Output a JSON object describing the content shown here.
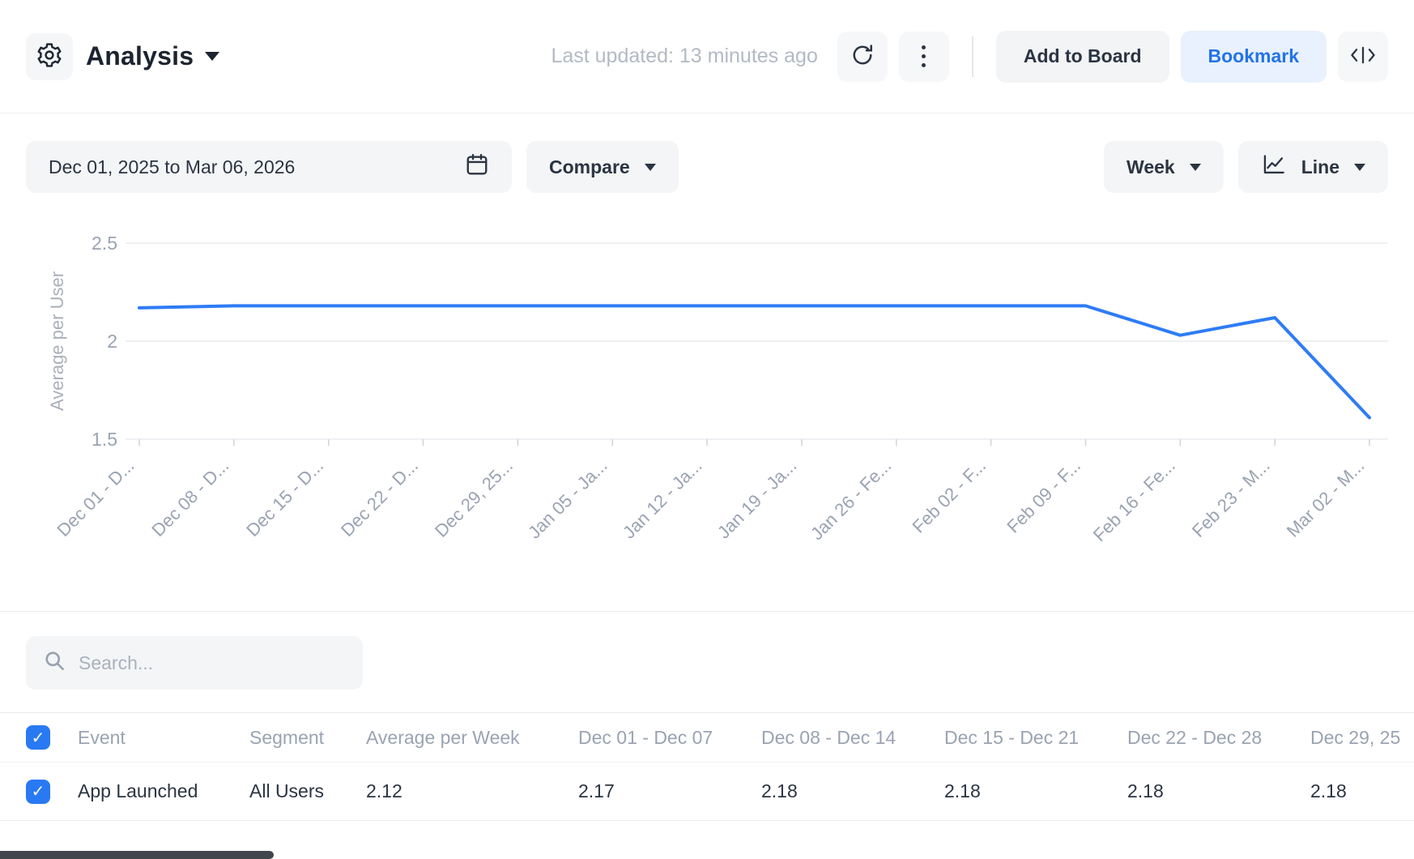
{
  "header": {
    "title": "Analysis",
    "last_updated": "Last updated: 13 minutes ago",
    "add_to_board_label": "Add to Board",
    "bookmark_label": "Bookmark"
  },
  "toolbar": {
    "date_range": "Dec 01, 2025 to Mar 06, 2026",
    "compare_label": "Compare",
    "interval_label": "Week",
    "chart_type_label": "Line"
  },
  "search": {
    "placeholder": "Search..."
  },
  "table": {
    "headers": [
      "Event",
      "Segment",
      "Average per Week",
      "Dec 01 - Dec 07",
      "Dec 08 - Dec 14",
      "Dec 15 - Dec 21",
      "Dec 22 - Dec 28",
      "Dec 29, 25"
    ],
    "rows": [
      {
        "event": "App Launched",
        "segment": "All Users",
        "values": [
          "2.12",
          "2.17",
          "2.18",
          "2.18",
          "2.18",
          "2.18"
        ]
      }
    ]
  },
  "chart_data": {
    "type": "line",
    "title": "",
    "ylabel": "Average per User",
    "x": [
      "Dec 01 - D...",
      "Dec 08 - D...",
      "Dec 15 - D...",
      "Dec 22 - D...",
      "Dec 29, 25...",
      "Jan 05 - Ja...",
      "Jan 12 - Ja...",
      "Jan 19 - Ja...",
      "Jan 26 - Fe...",
      "Feb 02 - F...",
      "Feb 09 - F...",
      "Feb 16 - Fe...",
      "Feb 23 - M...",
      "Mar 02 - M..."
    ],
    "series": [
      {
        "name": "App Launched",
        "values": [
          2.17,
          2.18,
          2.18,
          2.18,
          2.18,
          2.18,
          2.18,
          2.18,
          2.18,
          2.18,
          2.18,
          2.03,
          2.12,
          1.61
        ]
      }
    ],
    "yticks": [
      1.5,
      2,
      2.5
    ],
    "ylim": [
      1.5,
      2.5
    ],
    "grid": true,
    "legend_position": "none",
    "line_color": "#2e7cf6"
  },
  "icons": {
    "settings": "gear",
    "refresh": "circular-arrow",
    "more": "kebab-vertical",
    "code": "angle-brackets-with-bar",
    "calendar": "calendar",
    "chart_type": "line-chart",
    "search": "magnifier",
    "checkbox": "blue-check"
  },
  "colors": {
    "accent_blue": "#2e7cf6",
    "bookmark_blue": "#2373e8",
    "muted_text": "#9aa3b1",
    "button_gray": "#f3f5f7"
  }
}
